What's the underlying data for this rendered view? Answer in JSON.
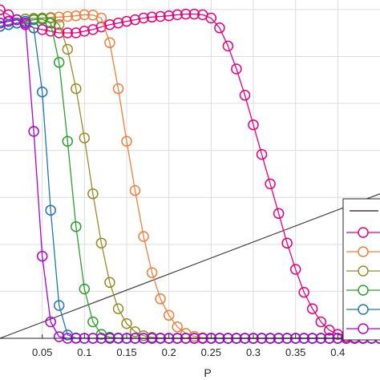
{
  "chart_data": {
    "type": "line",
    "xlabel": "P",
    "x_tick_labels": [
      "0.05",
      "0.1",
      "0.15",
      "0.2",
      "0.25",
      "0.3",
      "0.35",
      "0.4"
    ],
    "x_ticks": [
      0.05,
      0.1,
      0.15,
      0.2,
      0.25,
      0.3,
      0.35,
      0.4
    ],
    "xlim": [
      0.0,
      0.45
    ],
    "ylim": [
      0.0,
      1.03
    ],
    "grid": true,
    "legend_placement": "bottom-right",
    "reference_line": {
      "color": "#404040",
      "x": [
        0.0,
        0.45
      ],
      "y": [
        0.0,
        0.44
      ]
    },
    "series": [
      {
        "color": "#e6007e",
        "x": [
          0.0,
          0.01,
          0.02,
          0.03,
          0.04,
          0.05,
          0.06,
          0.07,
          0.08,
          0.09,
          0.1,
          0.11,
          0.12,
          0.13,
          0.14,
          0.15,
          0.16,
          0.17,
          0.18,
          0.19,
          0.2,
          0.21,
          0.22,
          0.23,
          0.24,
          0.25,
          0.26,
          0.27,
          0.28,
          0.29,
          0.3,
          0.31,
          0.32,
          0.33,
          0.34,
          0.35,
          0.36,
          0.37,
          0.38,
          0.39,
          0.4,
          0.41,
          0.42,
          0.43,
          0.44,
          0.45
        ],
        "y": [
          1.0,
          0.985,
          0.97,
          0.955,
          0.945,
          0.94,
          0.935,
          0.93,
          0.93,
          0.93,
          0.935,
          0.94,
          0.948,
          0.955,
          0.96,
          0.965,
          0.97,
          0.975,
          0.978,
          0.98,
          0.982,
          0.985,
          0.987,
          0.987,
          0.985,
          0.975,
          0.945,
          0.89,
          0.82,
          0.74,
          0.65,
          0.56,
          0.47,
          0.38,
          0.29,
          0.21,
          0.14,
          0.09,
          0.05,
          0.025,
          0.012,
          0.005,
          0.002,
          0.001,
          0.0,
          0.0
        ]
      },
      {
        "color": "#f07f3c",
        "x": [
          0.0,
          0.01,
          0.02,
          0.03,
          0.04,
          0.05,
          0.06,
          0.07,
          0.08,
          0.09,
          0.1,
          0.11,
          0.12,
          0.13,
          0.14,
          0.15,
          0.16,
          0.17,
          0.18,
          0.19,
          0.2,
          0.21,
          0.22,
          0.23,
          0.24,
          0.25,
          0.26,
          0.27,
          0.28,
          0.29,
          0.3,
          0.31,
          0.32,
          0.33,
          0.34,
          0.35,
          0.36,
          0.37,
          0.38,
          0.39,
          0.4,
          0.41,
          0.42,
          0.43,
          0.44,
          0.45
        ],
        "y": [
          0.96,
          0.965,
          0.97,
          0.972,
          0.974,
          0.975,
          0.977,
          0.978,
          0.98,
          0.982,
          0.985,
          0.984,
          0.975,
          0.9,
          0.76,
          0.6,
          0.45,
          0.31,
          0.2,
          0.12,
          0.07,
          0.035,
          0.015,
          0.006,
          0.002,
          0.001,
          0.0,
          0.0,
          0.0,
          0.0,
          0.0,
          0.0,
          0.0,
          0.0,
          0.0,
          0.0,
          0.0,
          0.0,
          0.0,
          0.0,
          0.0,
          0.0,
          0.0,
          0.0,
          0.0,
          0.0
        ]
      },
      {
        "color": "#9a8a2a",
        "x": [
          0.0,
          0.01,
          0.02,
          0.03,
          0.04,
          0.05,
          0.06,
          0.07,
          0.08,
          0.09,
          0.1,
          0.11,
          0.12,
          0.13,
          0.14,
          0.15,
          0.16,
          0.17,
          0.18,
          0.19,
          0.2,
          0.21,
          0.22,
          0.23,
          0.24,
          0.25,
          0.26,
          0.27,
          0.28,
          0.29,
          0.3,
          0.31,
          0.32,
          0.33,
          0.34,
          0.35,
          0.36,
          0.37,
          0.38,
          0.39,
          0.4,
          0.41,
          0.42,
          0.43,
          0.44,
          0.45
        ],
        "y": [
          0.96,
          0.965,
          0.97,
          0.972,
          0.974,
          0.975,
          0.975,
          0.955,
          0.88,
          0.76,
          0.61,
          0.44,
          0.29,
          0.17,
          0.09,
          0.045,
          0.02,
          0.008,
          0.003,
          0.001,
          0.0,
          0.0,
          0.0,
          0.0,
          0.0,
          0.0,
          0.0,
          0.0,
          0.0,
          0.0,
          0.0,
          0.0,
          0.0,
          0.0,
          0.0,
          0.0,
          0.0,
          0.0,
          0.0,
          0.0,
          0.0,
          0.0,
          0.0,
          0.0,
          0.0,
          0.0
        ]
      },
      {
        "color": "#2ca02c",
        "x": [
          0.0,
          0.01,
          0.02,
          0.03,
          0.04,
          0.05,
          0.06,
          0.07,
          0.08,
          0.09,
          0.1,
          0.11,
          0.12,
          0.13,
          0.14,
          0.15,
          0.16,
          0.17,
          0.18,
          0.19,
          0.2,
          0.21,
          0.22,
          0.23,
          0.24,
          0.25,
          0.26,
          0.27,
          0.28,
          0.29,
          0.3,
          0.31,
          0.32,
          0.33,
          0.34,
          0.35,
          0.36,
          0.37,
          0.38,
          0.39,
          0.4,
          0.41,
          0.42,
          0.43,
          0.44,
          0.45
        ],
        "y": [
          0.95,
          0.955,
          0.96,
          0.965,
          0.97,
          0.972,
          0.96,
          0.84,
          0.6,
          0.34,
          0.15,
          0.05,
          0.012,
          0.003,
          0.001,
          0.0,
          0.0,
          0.0,
          0.0,
          0.0,
          0.0,
          0.0,
          0.0,
          0.0,
          0.0,
          0.0,
          0.0,
          0.0,
          0.0,
          0.0,
          0.0,
          0.0,
          0.0,
          0.0,
          0.0,
          0.0,
          0.0,
          0.0,
          0.0,
          0.0,
          0.0,
          0.0,
          0.0,
          0.0,
          0.0,
          0.0
        ]
      },
      {
        "color": "#1f77b4",
        "x": [
          0.0,
          0.01,
          0.02,
          0.03,
          0.04,
          0.05,
          0.06,
          0.07,
          0.08,
          0.09,
          0.1,
          0.11,
          0.12,
          0.13,
          0.14,
          0.15,
          0.16,
          0.17,
          0.18,
          0.19,
          0.2,
          0.21,
          0.22,
          0.23,
          0.24,
          0.25,
          0.26,
          0.27,
          0.28,
          0.29,
          0.3,
          0.31,
          0.32,
          0.33,
          0.34,
          0.35,
          0.36,
          0.37,
          0.38,
          0.39,
          0.4,
          0.41,
          0.42,
          0.43,
          0.44,
          0.45
        ],
        "y": [
          0.95,
          0.955,
          0.96,
          0.965,
          0.945,
          0.75,
          0.39,
          0.1,
          0.01,
          0.001,
          0.0,
          0.0,
          0.0,
          0.0,
          0.0,
          0.0,
          0.0,
          0.0,
          0.0,
          0.0,
          0.0,
          0.0,
          0.0,
          0.0,
          0.0,
          0.0,
          0.0,
          0.0,
          0.0,
          0.0,
          0.0,
          0.0,
          0.0,
          0.0,
          0.0,
          0.0,
          0.0,
          0.0,
          0.0,
          0.0,
          0.0,
          0.0,
          0.0,
          0.0,
          0.0,
          0.0
        ]
      },
      {
        "color": "#b000d8",
        "x": [
          0.0,
          0.01,
          0.02,
          0.03,
          0.04,
          0.05,
          0.06,
          0.07,
          0.08,
          0.09,
          0.1,
          0.11,
          0.12,
          0.13,
          0.14,
          0.15,
          0.16,
          0.17,
          0.18,
          0.19,
          0.2,
          0.21,
          0.22,
          0.23,
          0.24,
          0.25,
          0.26,
          0.27,
          0.28,
          0.29,
          0.3,
          0.31,
          0.32,
          0.33,
          0.34,
          0.35,
          0.36,
          0.37,
          0.38,
          0.39,
          0.4,
          0.41,
          0.42,
          0.43,
          0.44,
          0.45
        ],
        "y": [
          0.96,
          0.965,
          0.97,
          0.96,
          0.63,
          0.25,
          0.05,
          0.005,
          0.0,
          0.0,
          0.0,
          0.0,
          0.0,
          0.0,
          0.0,
          0.0,
          0.0,
          0.0,
          0.0,
          0.0,
          0.0,
          0.0,
          0.0,
          0.0,
          0.0,
          0.0,
          0.0,
          0.0,
          0.0,
          0.0,
          0.0,
          0.0,
          0.0,
          0.0,
          0.0,
          0.0,
          0.0,
          0.0,
          0.0,
          0.0,
          0.0,
          0.0,
          0.0,
          0.0,
          0.0,
          0.0
        ]
      }
    ]
  }
}
